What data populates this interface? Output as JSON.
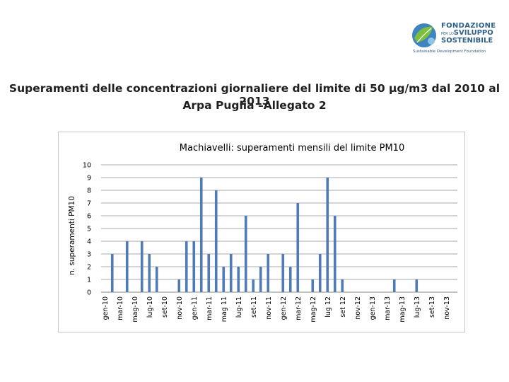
{
  "logo": {
    "line1": "FONDAZIONE",
    "line2_small": "PER LO",
    "line2": "SVILUPPO",
    "line3": "SOSTENIBILE",
    "tagline": "Sustainable Development Foundation",
    "color": "#2e5f8a"
  },
  "slide": {
    "title_line1": "Superamenti delle concentrazioni giornaliere del limite di 50 µg/m3 dal 2010 al 2013",
    "title_line2": "Arpa Puglia –Allegato 2"
  },
  "chart_data": {
    "type": "bar",
    "title": "Machiavelli: superamenti mensili del limite PM10",
    "ylabel": "n. superamenti PM10",
    "xlabel": "",
    "ylim": [
      0,
      10
    ],
    "yticks": [
      0,
      1,
      2,
      3,
      4,
      5,
      6,
      7,
      8,
      9,
      10
    ],
    "grid": true,
    "bar_color": "#4f7bb8",
    "tick_labels": [
      "gen-10",
      "mar-10",
      "mag-10",
      "lug-10",
      "set-10",
      "nov-10",
      "gen-11",
      "mar-11",
      "mag 11",
      "lug-11",
      "set-11",
      "nov-11",
      "gen-12",
      "mar-12",
      "mag-12",
      "lug 12",
      "set 12",
      "nov-12",
      "gen-13",
      "mar-13",
      "mag-13",
      "lug-13",
      "set-13",
      "nov-13"
    ],
    "categories": [
      "gen-10",
      "feb-10",
      "mar-10",
      "apr-10",
      "mag-10",
      "giu-10",
      "lug-10",
      "ago-10",
      "set-10",
      "ott-10",
      "nov-10",
      "dic-10",
      "gen-11",
      "feb-11",
      "mar-11",
      "apr-11",
      "mag-11",
      "giu-11",
      "lug-11",
      "ago-11",
      "set-11",
      "ott-11",
      "nov-11",
      "dic-11",
      "gen-12",
      "feb-12",
      "mar-12",
      "apr-12",
      "mag-12",
      "giu-12",
      "lug-12",
      "ago-12",
      "set-12",
      "ott-12",
      "nov-12",
      "dic-12",
      "gen-13",
      "feb-13",
      "mar-13",
      "apr-13",
      "mag-13",
      "giu-13",
      "lug-13",
      "ago-13",
      "set-13",
      "ott-13",
      "nov-13",
      "dic-13"
    ],
    "values": [
      0,
      3,
      0,
      4,
      0,
      4,
      3,
      2,
      0,
      0,
      1,
      4,
      4,
      9,
      3,
      8,
      2,
      3,
      2,
      6,
      1,
      2,
      3,
      0,
      3,
      2,
      7,
      0,
      1,
      3,
      9,
      6,
      1,
      0,
      0,
      0,
      0,
      0,
      0,
      1,
      0,
      0,
      1,
      0,
      0,
      0,
      0,
      0
    ]
  }
}
